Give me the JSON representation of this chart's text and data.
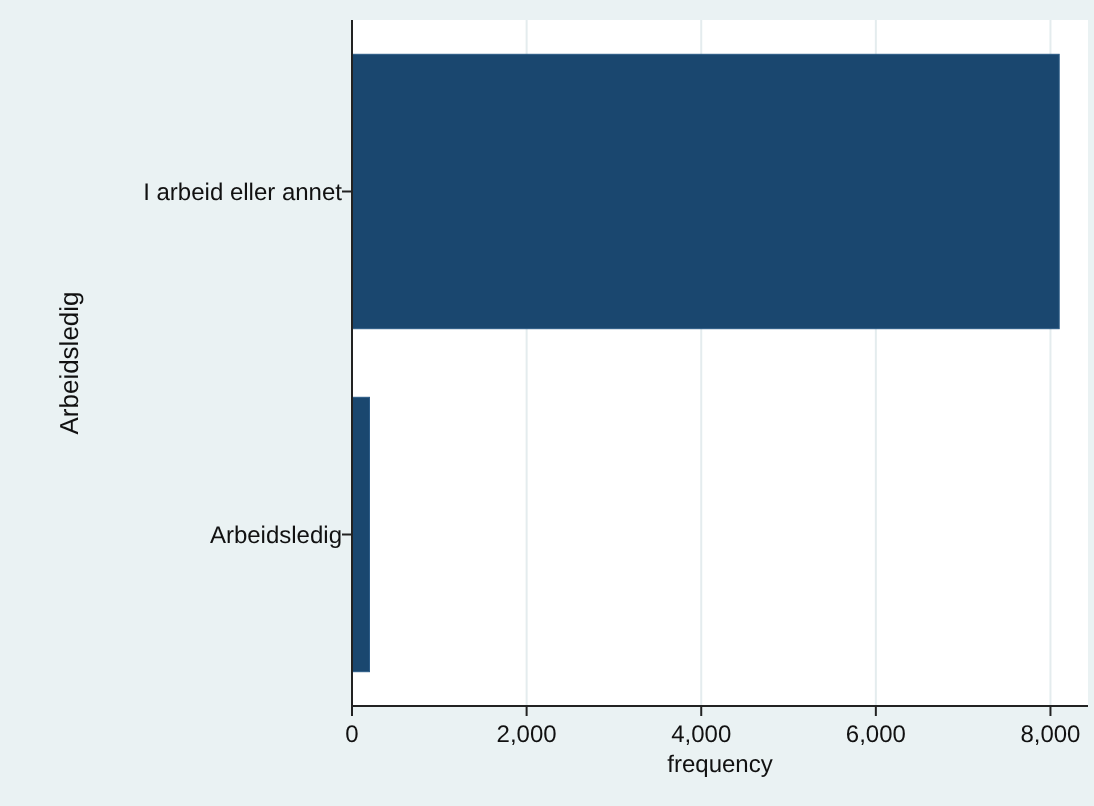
{
  "chart_data": {
    "type": "bar",
    "orientation": "horizontal",
    "categories": [
      "I arbeid eller annet",
      "Arbeidsledig"
    ],
    "values": [
      8100,
      200
    ],
    "color": "#1a476f",
    "xlim": [
      0,
      8430
    ],
    "xticks": [
      {
        "value": 0,
        "label": "0"
      },
      {
        "value": 2000,
        "label": "2,000"
      },
      {
        "value": 4000,
        "label": "4,000"
      },
      {
        "value": 6000,
        "label": "6,000"
      },
      {
        "value": 8000,
        "label": "8,000"
      }
    ],
    "xlabel": "frequency",
    "ylabel": "Arbeidsledig",
    "grid": "x"
  }
}
